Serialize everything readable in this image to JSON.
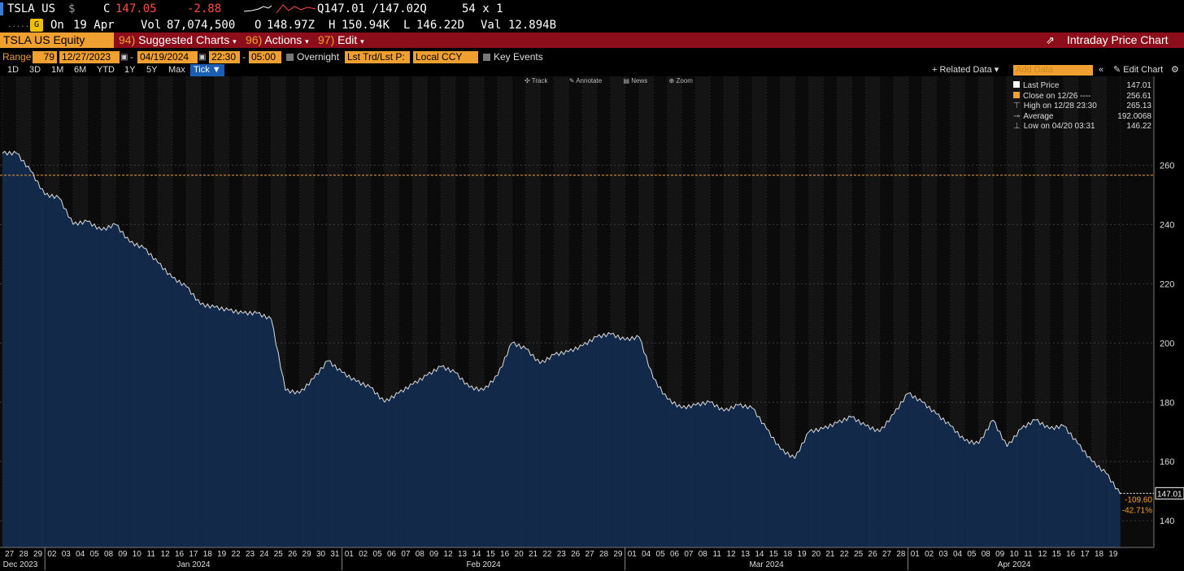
{
  "quote": {
    "ticker": "TSLA US",
    "currency_symbol": "$",
    "c_label": "C",
    "last": "147.05",
    "change": "-2.88",
    "bid_ask": "Q147.01 /147.02Q",
    "size": "54 x 1",
    "on_label": "On",
    "date": "19 Apr",
    "vol_label": "Vol",
    "volume": "87,074,500",
    "open_label": "O",
    "open": "148.97Z",
    "high_label": "H",
    "high": "150.94K",
    "low_label": "L",
    "low": "146.22D",
    "val_label": "Val",
    "value": "12.894B"
  },
  "menubar": {
    "security": "TSLA US Equity",
    "suggested_num": "94)",
    "suggested": "Suggested Charts",
    "actions_num": "96)",
    "actions": "Actions",
    "edit_num": "97)",
    "edit": "Edit",
    "title": "Intraday Price Chart"
  },
  "controls": {
    "range_label": "Range",
    "range_value": "79",
    "start_date": "12/27/2023",
    "end_date": "04/19/2024",
    "start_time": "22:30",
    "end_time": "05:00",
    "overnight": "Overnight",
    "field": "Lst Trd/Lst P:",
    "currency": "Local CCY",
    "key_events": "Key Events"
  },
  "timeframes": [
    "1D",
    "3D",
    "1M",
    "6M",
    "YTD",
    "1Y",
    "5Y",
    "Max"
  ],
  "tick_button": "Tick ▼",
  "related_data": "+ Related Data ▾",
  "add_data_placeholder": "Add Data",
  "edit_chart": "✎ Edit Chart",
  "toolbar": {
    "track": "Track",
    "annotate": "Annotate",
    "news": "News",
    "zoom": "Zoom"
  },
  "legend": {
    "last_price_label": "Last Price",
    "last_price": "147.01",
    "close_label": "Close on 12/26 ----",
    "close": "256.61",
    "high_label": "High on 12/28 23:30",
    "high": "265.13",
    "average_label": "Average",
    "average": "192.0068",
    "low_label": "Low on 04/20 03:31",
    "low": "146.22"
  },
  "colors": {
    "area": "#13294a",
    "line": "#ffffff",
    "ref_line": "#f0a030",
    "accent": "#f0a030",
    "menubar": "#8b0e1a"
  },
  "chart_data": {
    "type": "area",
    "title": "",
    "xlabel": "",
    "ylabel": "",
    "ylim": [
      131,
      290
    ],
    "yticks": [
      140,
      160,
      180,
      200,
      220,
      240,
      260
    ],
    "reference_line": {
      "label": "Close on 12/26",
      "value": 256.61
    },
    "x": [
      "27",
      "28",
      "29",
      "02",
      "03",
      "04",
      "05",
      "08",
      "09",
      "10",
      "11",
      "12",
      "16",
      "17",
      "18",
      "19",
      "22",
      "23",
      "24",
      "25",
      "26",
      "29",
      "30",
      "31",
      "01",
      "02",
      "05",
      "06",
      "07",
      "08",
      "09",
      "12",
      "13",
      "14",
      "15",
      "16",
      "20",
      "21",
      "22",
      "23",
      "26",
      "27",
      "28",
      "29",
      "01",
      "04",
      "05",
      "06",
      "07",
      "08",
      "11",
      "12",
      "13",
      "14",
      "15",
      "18",
      "19",
      "20",
      "21",
      "22",
      "25",
      "26",
      "27",
      "28",
      "01",
      "02",
      "03",
      "04",
      "05",
      "08",
      "09",
      "10",
      "11",
      "12",
      "15",
      "16",
      "17",
      "18",
      "19"
    ],
    "values": [
      264,
      258,
      250,
      249,
      240,
      241,
      238,
      240,
      234,
      232,
      227,
      222,
      219,
      213,
      212,
      211,
      210,
      210,
      208,
      184,
      183,
      188,
      194,
      190,
      187,
      185,
      180,
      183,
      186,
      189,
      192,
      190,
      185,
      184,
      189,
      200,
      198,
      193,
      196,
      197,
      199,
      202,
      203,
      201,
      202,
      188,
      181,
      178,
      179,
      180,
      177,
      179,
      178,
      171,
      164,
      161,
      170,
      171,
      173,
      175,
      172,
      170,
      176,
      183,
      180,
      176,
      172,
      167,
      166,
      174,
      165,
      171,
      174,
      171,
      172,
      166,
      160,
      156,
      149
    ],
    "month_labels": [
      {
        "label": "Dec 2023",
        "at": "27"
      },
      {
        "label": "Jan 2024"
      },
      {
        "label": "Feb 2024"
      },
      {
        "label": "Mar 2024"
      },
      {
        "label": "Apr 2024"
      }
    ],
    "last_price_tag": "147.01",
    "change_labels": [
      "-109.60",
      "-42.71%"
    ]
  }
}
